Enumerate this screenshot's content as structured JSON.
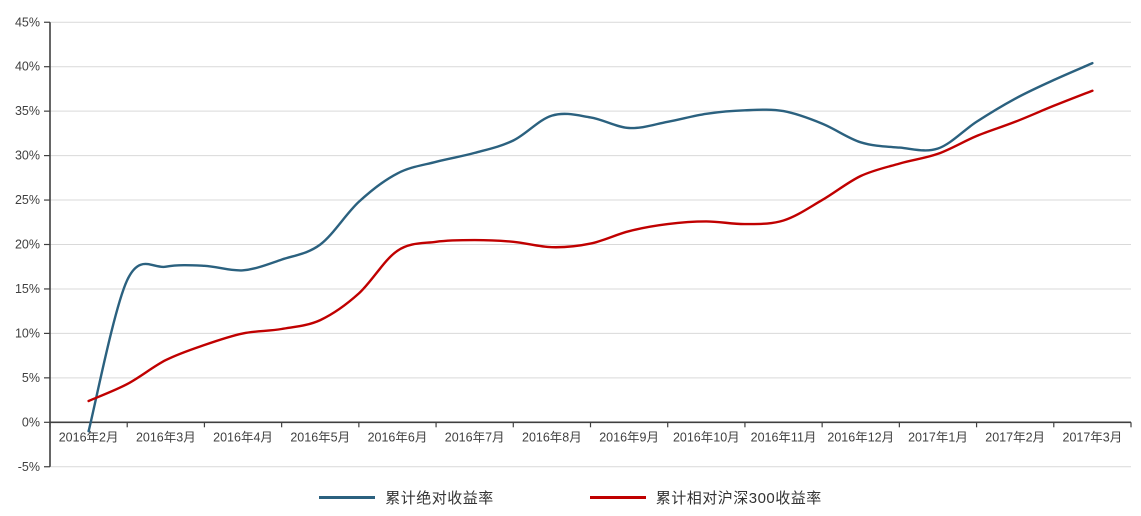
{
  "chart_data": {
    "type": "line",
    "title": "",
    "grid": true,
    "legend_position": "bottom",
    "x_axis": {
      "categories": [
        "2016年2月",
        "2016年3月",
        "2016年4月",
        "2016年5月",
        "2016年6月",
        "2016年7月",
        "2016年8月",
        "2016年9月",
        "2016年10月",
        "2016年11月",
        "2016年12月",
        "2017年1月",
        "2017年2月",
        "2017年3月"
      ]
    },
    "y_axis": {
      "min": -5,
      "max": 45,
      "step": 5,
      "format": "percent",
      "tick_labels": [
        "45%",
        "40%",
        "35%",
        "30%",
        "25%",
        "20%",
        "15%",
        "10%",
        "5%",
        "0%",
        "-5%"
      ]
    },
    "x_unit": "month_index_from_2016-02",
    "series": [
      {
        "name": "累计绝对收益率",
        "color": "#2B617F",
        "x": [
          0,
          0.5,
          1,
          1.5,
          2,
          2.5,
          3,
          3.5,
          4,
          4.5,
          5,
          5.5,
          6,
          6.5,
          7,
          7.5,
          8,
          8.5,
          9,
          9.5,
          10,
          10.5,
          11,
          11.5,
          12,
          12.5,
          13
        ],
        "values": [
          -1.0,
          16.0,
          17.5,
          17.6,
          17.1,
          18.3,
          20.0,
          24.8,
          28.0,
          29.3,
          30.3,
          31.7,
          34.5,
          34.3,
          33.1,
          33.8,
          34.7,
          35.1,
          35.0,
          33.6,
          31.5,
          30.9,
          30.8,
          33.8,
          36.4,
          38.5,
          40.4
        ]
      },
      {
        "name": "累计相对沪深300收益率",
        "color": "#C00000",
        "x": [
          0,
          0.5,
          1,
          1.5,
          2,
          2.5,
          3,
          3.5,
          4,
          4.5,
          5,
          5.5,
          6,
          6.5,
          7,
          7.5,
          8,
          8.5,
          9,
          9.5,
          10,
          10.5,
          11,
          11.5,
          12,
          12.5,
          13
        ],
        "values": [
          2.4,
          4.3,
          7.0,
          8.7,
          10.0,
          10.5,
          11.5,
          14.5,
          19.3,
          20.3,
          20.5,
          20.3,
          19.7,
          20.1,
          21.5,
          22.3,
          22.6,
          22.3,
          22.7,
          25.0,
          27.7,
          29.1,
          30.2,
          32.2,
          33.8,
          35.6,
          37.3
        ]
      }
    ]
  },
  "colors": {
    "gridline": "#D9D9D9",
    "axis": "#404040",
    "tick_label": "#404040",
    "background": "#FFFFFF"
  }
}
